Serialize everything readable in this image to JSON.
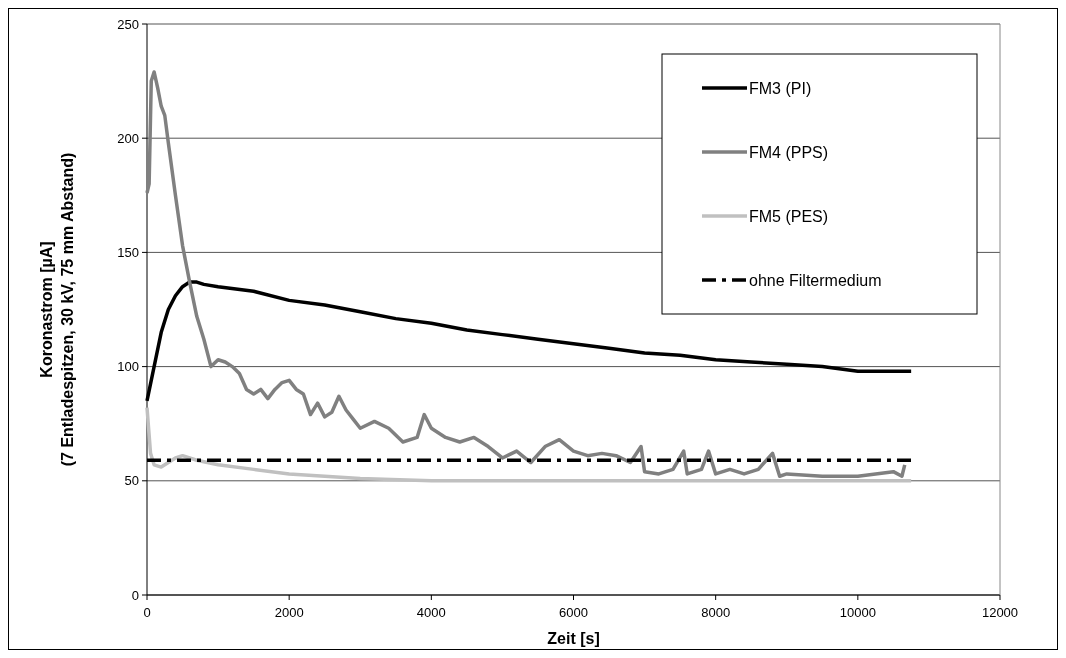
{
  "chart_data": {
    "type": "line",
    "xlabel": "Zeit [s]",
    "ylabel": "Koronastrom [µA]\n(7 Entladespitzen, 30 kV, 75 mm Abstand)",
    "xlim": [
      0,
      12000
    ],
    "xticks": [
      0,
      2000,
      4000,
      6000,
      8000,
      10000,
      12000
    ],
    "ylim": [
      0,
      250
    ],
    "yticks": [
      0,
      50,
      100,
      150,
      200,
      250
    ],
    "grid": "y",
    "legend": "top right",
    "series": [
      {
        "name": "FM3 (PI)",
        "color": "#000000",
        "line_style": "solid",
        "x": [
          0,
          100,
          200,
          300,
          400,
          500,
          600,
          700,
          800,
          1000,
          1500,
          2000,
          2500,
          3000,
          3500,
          4000,
          4500,
          5000,
          5500,
          6000,
          6500,
          7000,
          7500,
          8000,
          8500,
          9000,
          9500,
          10000,
          10500,
          10750
        ],
        "values": [
          85,
          100,
          115,
          125,
          131,
          135,
          137,
          137,
          136,
          135,
          133,
          129,
          127,
          124,
          121,
          119,
          116,
          114,
          112,
          110,
          108,
          106,
          105,
          103,
          102,
          101,
          100,
          98,
          98,
          98
        ]
      },
      {
        "name": "FM4 (PPS)",
        "color": "#808080",
        "line_style": "solid",
        "x": [
          0,
          30,
          60,
          100,
          150,
          200,
          250,
          300,
          400,
          500,
          600,
          700,
          800,
          900,
          1000,
          1100,
          1200,
          1300,
          1400,
          1500,
          1600,
          1700,
          1800,
          1900,
          2000,
          2100,
          2200,
          2300,
          2400,
          2500,
          2600,
          2700,
          2800,
          2900,
          3000,
          3200,
          3400,
          3600,
          3800,
          3900,
          4000,
          4200,
          4400,
          4600,
          4800,
          5000,
          5200,
          5400,
          5600,
          5800,
          6000,
          6200,
          6400,
          6600,
          6800,
          6950,
          7000,
          7200,
          7400,
          7550,
          7600,
          7800,
          7900,
          8000,
          8200,
          8400,
          8600,
          8800,
          8900,
          9000,
          9500,
          10000,
          10500,
          10620,
          10660
        ],
        "values": [
          176,
          180,
          225,
          229,
          222,
          214,
          210,
          198,
          175,
          153,
          137,
          122,
          112,
          100,
          103,
          102,
          100,
          97,
          90,
          88,
          90,
          86,
          90,
          93,
          94,
          90,
          88,
          79,
          84,
          78,
          80,
          87,
          81,
          77,
          73,
          76,
          73,
          67,
          69,
          79,
          73,
          69,
          67,
          69,
          65,
          60,
          63,
          58,
          65,
          68,
          63,
          61,
          62,
          61,
          58,
          65,
          54,
          53,
          55,
          63,
          53,
          55,
          63,
          53,
          55,
          53,
          55,
          62,
          52,
          53,
          52,
          52,
          54,
          52,
          57
        ]
      },
      {
        "name": "FM5 (PES)",
        "color": "#c0c0c0",
        "line_style": "solid",
        "x": [
          0,
          50,
          100,
          200,
          300,
          400,
          500,
          700,
          1000,
          1500,
          2000,
          2500,
          3000,
          4000,
          5000,
          6000,
          8000,
          10000,
          10750
        ],
        "values": [
          82,
          62,
          57,
          56,
          58,
          60,
          61,
          59,
          57,
          55,
          53,
          52,
          51,
          50,
          50,
          50,
          50,
          50,
          50
        ]
      },
      {
        "name": "ohne Filtermedium",
        "color": "#000000",
        "line_style": "dashed",
        "x": [
          0,
          10750
        ],
        "values": [
          59,
          59
        ]
      }
    ]
  }
}
